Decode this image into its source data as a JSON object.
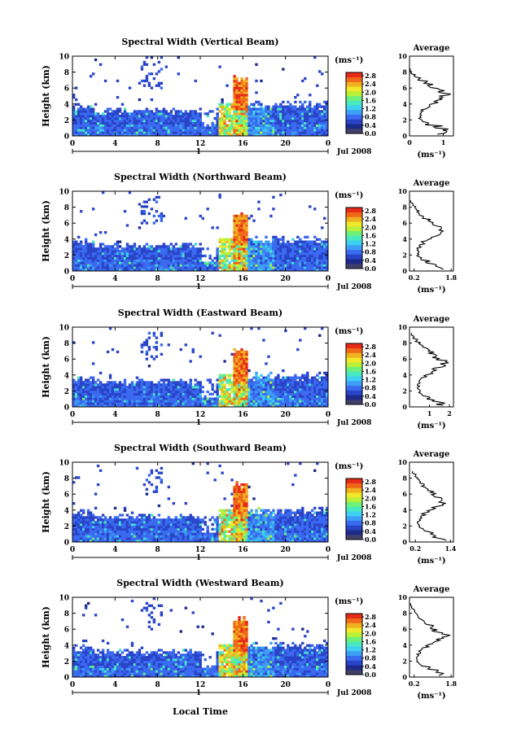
{
  "figure": {
    "xlabel": "Local Time",
    "date_label": "Jul 2008",
    "day_label": "1",
    "ylabel": "Height (km)",
    "colorbar_unit": "(ms⁻¹)",
    "avg_title": "Average",
    "avg_unit": "(ms⁻¹)",
    "colorscale": [
      "#1c2a8a",
      "#2a44c8",
      "#3a6af0",
      "#3c9ef4",
      "#3ed0f0",
      "#48e8c0",
      "#6ef07a",
      "#b8f03a",
      "#f0e828",
      "#f0b020",
      "#f06818",
      "#e82a18"
    ],
    "colorbar_ticks": [
      "2.8",
      "2.4",
      "2.0",
      "1.6",
      "1.2",
      "0.8",
      "0.4",
      "0.0"
    ]
  },
  "chart_data": [
    {
      "type": "heatmap",
      "title": "Spectral Width (Vertical Beam)",
      "x_ticks": [
        "0",
        "4",
        "8",
        "12",
        "16",
        "20",
        "0"
      ],
      "y_ticks": [
        "0",
        "2",
        "4",
        "6",
        "8",
        "10"
      ],
      "xlim": [
        0,
        24
      ],
      "ylim": [
        0,
        10
      ],
      "clim": [
        0,
        3
      ],
      "average_profile": {
        "x_ticks": [
          "0",
          "1"
        ],
        "xlim": [
          0,
          1.3
        ],
        "height_km": [
          0.2,
          0.6,
          1.0,
          1.4,
          1.8,
          2.2,
          2.6,
          3.0,
          3.4,
          3.8,
          4.2,
          4.6,
          5.0,
          5.4,
          5.8,
          6.2,
          6.6,
          7.0,
          7.4,
          7.8,
          8.2
        ],
        "value": [
          0.95,
          1.0,
          0.85,
          0.55,
          0.35,
          0.3,
          0.32,
          0.4,
          0.55,
          0.7,
          0.75,
          0.95,
          1.05,
          0.9,
          0.75,
          0.6,
          0.45,
          0.3,
          0.15,
          0.05,
          0.0
        ]
      }
    },
    {
      "type": "heatmap",
      "title": "Spectral Width (Northward Beam)",
      "x_ticks": [
        "0",
        "4",
        "8",
        "12",
        "16",
        "20",
        "0"
      ],
      "y_ticks": [
        "0",
        "2",
        "4",
        "6",
        "8",
        "10"
      ],
      "xlim": [
        0,
        24
      ],
      "ylim": [
        0,
        10
      ],
      "clim": [
        0,
        3
      ],
      "average_profile": {
        "x_ticks": [
          "0.2",
          "1.8"
        ],
        "xlim": [
          0,
          1.9
        ],
        "height_km": [
          0.2,
          0.6,
          1.0,
          1.4,
          1.8,
          2.2,
          2.6,
          3.0,
          3.4,
          3.8,
          4.2,
          4.6,
          5.0,
          5.4,
          5.8,
          6.2,
          6.6,
          7.0,
          7.4,
          7.8,
          8.2,
          8.6
        ],
        "value": [
          1.3,
          1.1,
          0.8,
          0.5,
          0.35,
          0.35,
          0.38,
          0.45,
          0.6,
          0.8,
          1.05,
          1.3,
          1.45,
          1.2,
          1.0,
          0.8,
          0.6,
          0.45,
          0.35,
          0.25,
          0.15,
          0.05
        ]
      }
    },
    {
      "type": "heatmap",
      "title": "Spectral Width (Eastward Beam)",
      "x_ticks": [
        "0",
        "4",
        "8",
        "12",
        "16",
        "20",
        "0"
      ],
      "y_ticks": [
        "0",
        "2",
        "4",
        "6",
        "8",
        "10"
      ],
      "xlim": [
        0,
        24
      ],
      "ylim": [
        0,
        10
      ],
      "clim": [
        0,
        3
      ],
      "average_profile": {
        "x_ticks": [
          "1",
          "2"
        ],
        "xlim": [
          0,
          2.2
        ],
        "height_km": [
          0.2,
          0.6,
          1.0,
          1.4,
          1.8,
          2.2,
          2.6,
          3.0,
          3.4,
          3.8,
          4.2,
          4.6,
          5.0,
          5.4,
          5.8,
          6.2,
          6.6,
          7.0,
          7.4,
          7.8,
          8.2,
          8.6,
          9.0
        ],
        "value": [
          1.6,
          1.3,
          1.0,
          0.7,
          0.5,
          0.45,
          0.45,
          0.5,
          0.6,
          0.8,
          1.0,
          1.3,
          1.6,
          1.8,
          1.6,
          1.3,
          1.1,
          0.9,
          0.7,
          0.5,
          0.35,
          0.2,
          0.1
        ]
      }
    },
    {
      "type": "heatmap",
      "title": "Spectral Width (Southward Beam)",
      "x_ticks": [
        "0",
        "4",
        "8",
        "12",
        "16",
        "20",
        "0"
      ],
      "y_ticks": [
        "0",
        "2",
        "4",
        "6",
        "8",
        "10"
      ],
      "xlim": [
        0,
        24
      ],
      "ylim": [
        0,
        10
      ],
      "clim": [
        0,
        3
      ],
      "average_profile": {
        "x_ticks": [
          "0.2",
          "1.4"
        ],
        "xlim": [
          0,
          1.5
        ],
        "height_km": [
          0.2,
          0.6,
          1.0,
          1.4,
          1.8,
          2.2,
          2.6,
          3.0,
          3.4,
          3.8,
          4.2,
          4.6,
          5.0,
          5.4,
          5.8,
          6.2,
          6.6,
          7.0,
          7.4,
          7.8,
          8.2,
          8.6
        ],
        "value": [
          1.1,
          0.9,
          0.7,
          0.45,
          0.32,
          0.3,
          0.32,
          0.38,
          0.5,
          0.7,
          0.9,
          1.1,
          1.2,
          1.0,
          0.85,
          0.7,
          0.55,
          0.45,
          0.35,
          0.3,
          0.2,
          0.1
        ]
      }
    },
    {
      "type": "heatmap",
      "title": "Spectral Width (Westward Beam)",
      "x_ticks": [
        "0",
        "4",
        "8",
        "12",
        "16",
        "20",
        "0"
      ],
      "y_ticks": [
        "0",
        "2",
        "4",
        "6",
        "8",
        "10"
      ],
      "xlim": [
        0,
        24
      ],
      "ylim": [
        0,
        10
      ],
      "clim": [
        0,
        3
      ],
      "average_profile": {
        "x_ticks": [
          "0.2",
          "1.8"
        ],
        "xlim": [
          0,
          1.9
        ],
        "height_km": [
          0.2,
          0.6,
          1.0,
          1.4,
          1.8,
          2.2,
          2.6,
          3.0,
          3.4,
          3.8,
          4.2,
          4.6,
          5.0,
          5.4,
          5.8,
          6.2,
          6.6,
          7.0,
          7.4,
          7.8,
          8.2,
          8.6,
          9.0
        ],
        "value": [
          1.3,
          1.1,
          0.8,
          0.5,
          0.35,
          0.33,
          0.36,
          0.45,
          0.6,
          0.85,
          1.1,
          1.35,
          1.5,
          1.3,
          1.1,
          0.9,
          0.7,
          0.55,
          0.4,
          0.3,
          0.2,
          0.1,
          0.05
        ]
      }
    }
  ]
}
